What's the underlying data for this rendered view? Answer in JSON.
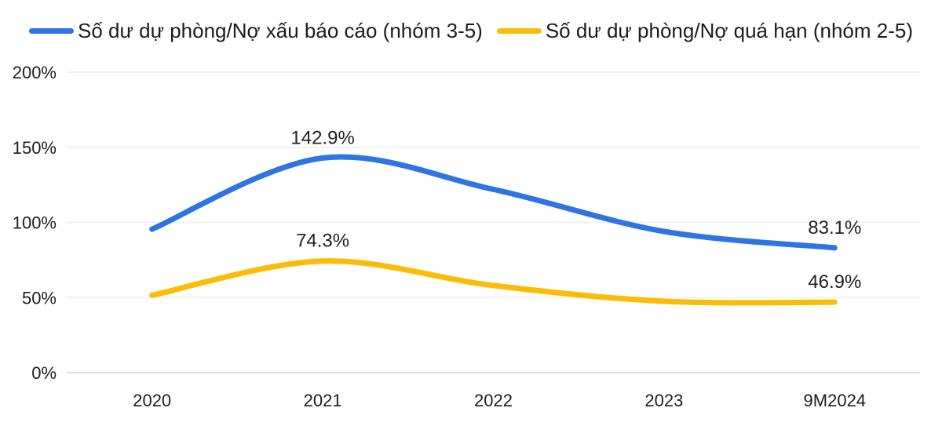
{
  "chart_data": {
    "type": "line",
    "categories": [
      "2020",
      "2021",
      "2022",
      "2023",
      "9M2024"
    ],
    "series": [
      {
        "name": "Số dư dự phòng/Nợ xấu báo cáo (nhóm 3-5)",
        "color": "#2e74e3",
        "values": [
          95.5,
          142.9,
          122.0,
          94.0,
          83.1
        ]
      },
      {
        "name": "Số dư dự phòng/Nợ quá hạn (nhóm 2-5)",
        "color": "#fbbc05",
        "values": [
          51.5,
          74.3,
          58.0,
          47.5,
          46.9
        ]
      }
    ],
    "annotations": [
      {
        "series": 0,
        "index": 1,
        "label": "142.9%"
      },
      {
        "series": 0,
        "index": 4,
        "label": "83.1%"
      },
      {
        "series": 1,
        "index": 1,
        "label": "74.3%"
      },
      {
        "series": 1,
        "index": 4,
        "label": "46.9%"
      }
    ],
    "y_ticks": [
      "0%",
      "50%",
      "100%",
      "150%",
      "200%"
    ],
    "ylim": [
      0,
      200
    ],
    "xlabel": "",
    "ylabel": "",
    "title": "",
    "grid": true,
    "legend_position": "top",
    "smooth": true
  },
  "colors": {
    "gridline": "#f0f2f1",
    "baseline": "#dce2de",
    "axis_text": "#1d1d1f",
    "data_label_text": "#202124",
    "background": "#ffffff"
  }
}
